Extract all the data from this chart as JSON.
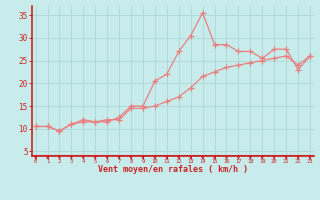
{
  "x": [
    0,
    1,
    2,
    3,
    4,
    5,
    6,
    7,
    8,
    9,
    10,
    11,
    12,
    13,
    14,
    15,
    16,
    17,
    18,
    19,
    20,
    21,
    22,
    23
  ],
  "y_rafales": [
    10.5,
    10.5,
    9.5,
    11.0,
    12.0,
    11.5,
    11.5,
    12.5,
    15.0,
    15.0,
    20.5,
    22.0,
    27.0,
    30.5,
    35.5,
    28.5,
    28.5,
    27.0,
    27.0,
    25.5,
    27.5,
    27.5,
    23.0,
    26.0
  ],
  "y_moyen": [
    10.5,
    10.5,
    9.5,
    11.0,
    11.5,
    11.5,
    12.0,
    12.0,
    14.5,
    14.5,
    15.0,
    16.0,
    17.0,
    19.0,
    21.5,
    22.5,
    23.5,
    24.0,
    24.5,
    25.0,
    25.5,
    26.0,
    24.0,
    26.0
  ],
  "line_color": "#e88080",
  "bg_color": "#c8ecec",
  "grid_color": "#a8d4d4",
  "axis_color": "#cc2222",
  "text_color": "#cc2222",
  "xlabel": "Vent moyen/en rafales ( km/h )",
  "yticks": [
    5,
    10,
    15,
    20,
    25,
    30,
    35
  ],
  "xticks": [
    0,
    1,
    2,
    3,
    4,
    5,
    6,
    7,
    8,
    9,
    10,
    11,
    12,
    13,
    14,
    15,
    16,
    17,
    18,
    19,
    20,
    21,
    22,
    23
  ],
  "ylim": [
    4,
    37
  ],
  "xlim": [
    -0.3,
    23.3
  ]
}
